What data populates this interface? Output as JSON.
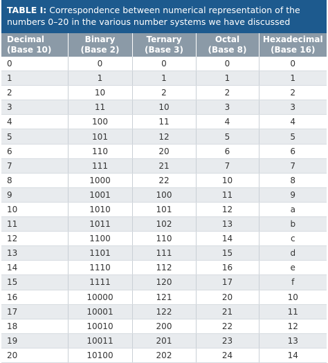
{
  "title": {
    "label": "TABLE I:",
    "text": "Correspondence between numerical representation of the numbers 0–20 in the various number systems we have discussed"
  },
  "table": {
    "header": [
      [
        "Decimal",
        "(Base 10)"
      ],
      [
        "Binary",
        "(Base 2)"
      ],
      [
        "Ternary",
        "(Base 3)"
      ],
      [
        "Octal",
        "(Base 8)"
      ],
      [
        "Hexadecimal",
        "(Base 16)"
      ]
    ],
    "rows": [
      [
        "0",
        "0",
        "0",
        "0",
        "0"
      ],
      [
        "1",
        "1",
        "1",
        "1",
        "1"
      ],
      [
        "2",
        "10",
        "2",
        "2",
        "2"
      ],
      [
        "3",
        "11",
        "10",
        "3",
        "3"
      ],
      [
        "4",
        "100",
        "11",
        "4",
        "4"
      ],
      [
        "5",
        "101",
        "12",
        "5",
        "5"
      ],
      [
        "6",
        "110",
        "20",
        "6",
        "6"
      ],
      [
        "7",
        "111",
        "21",
        "7",
        "7"
      ],
      [
        "8",
        "1000",
        "22",
        "10",
        "8"
      ],
      [
        "9",
        "1001",
        "100",
        "11",
        "9"
      ],
      [
        "10",
        "1010",
        "101",
        "12",
        "a"
      ],
      [
        "11",
        "1011",
        "102",
        "13",
        "b"
      ],
      [
        "12",
        "1100",
        "110",
        "14",
        "c"
      ],
      [
        "13",
        "1101",
        "111",
        "15",
        "d"
      ],
      [
        "14",
        "1110",
        "112",
        "16",
        "e"
      ],
      [
        "15",
        "1111",
        "120",
        "17",
        "f"
      ],
      [
        "16",
        "10000",
        "121",
        "20",
        "10"
      ],
      [
        "17",
        "10001",
        "122",
        "21",
        "11"
      ],
      [
        "18",
        "10010",
        "200",
        "22",
        "12"
      ],
      [
        "19",
        "10011",
        "201",
        "23",
        "13"
      ],
      [
        "20",
        "10100",
        "202",
        "24",
        "14"
      ]
    ]
  }
}
